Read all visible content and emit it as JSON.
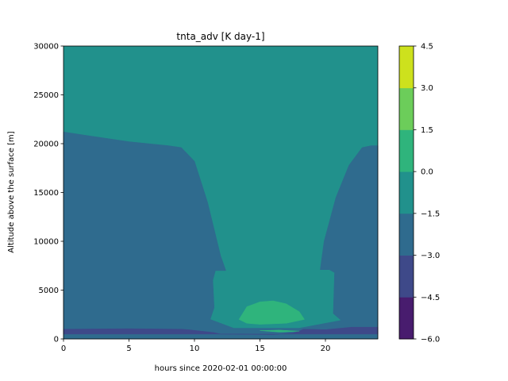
{
  "chart_data": {
    "type": "contourf",
    "title": "tnta_adv [K day-1]",
    "xlabel": "hours since 2020-02-01 00:00:00",
    "ylabel": "Altitude above the surface [m]",
    "xlim": [
      0,
      24
    ],
    "ylim": [
      0,
      30000
    ],
    "x_ticks": [
      0,
      5,
      10,
      15,
      20
    ],
    "x_tick_labels": [
      "0",
      "5",
      "10",
      "15",
      "20"
    ],
    "y_ticks": [
      0,
      5000,
      10000,
      15000,
      20000,
      25000,
      30000
    ],
    "y_tick_labels": [
      "0",
      "5000",
      "10000",
      "15000",
      "20000",
      "25000",
      "30000"
    ],
    "colorbar": {
      "levels": [
        -6.0,
        -4.5,
        -3.0,
        -1.5,
        0.0,
        1.5,
        3.0,
        4.5
      ],
      "tick_labels": [
        "−6.0",
        "−4.5",
        "−3.0",
        "−1.5",
        "0.0",
        "1.5",
        "3.0",
        "4.5"
      ],
      "colors": [
        "#481c6e",
        "#3e4989",
        "#2f6b8e",
        "#21918c",
        "#2fb47c",
        "#6ccd5a",
        "#cde11d"
      ]
    },
    "regions": [
      {
        "band": "-3.0 to -1.5",
        "outline": [
          [
            0,
            21200
          ],
          [
            2,
            20800
          ],
          [
            5,
            20200
          ],
          [
            8,
            19800
          ],
          [
            9,
            19600
          ],
          [
            10,
            18200
          ],
          [
            11,
            14000
          ],
          [
            12,
            8500
          ],
          [
            12.4,
            7000
          ],
          [
            11.6,
            7000
          ],
          [
            11.4,
            6000
          ],
          [
            11.5,
            3200
          ],
          [
            11.2,
            2000
          ],
          [
            13,
            1100
          ],
          [
            18,
            1100
          ],
          [
            21.2,
            1900
          ],
          [
            20.6,
            2600
          ],
          [
            20.7,
            6800
          ],
          [
            20.3,
            7100
          ],
          [
            19.6,
            7100
          ],
          [
            19.9,
            10000
          ],
          [
            20.8,
            14500
          ],
          [
            21.8,
            17800
          ],
          [
            22.8,
            19600
          ],
          [
            23.5,
            19800
          ],
          [
            24,
            19800
          ],
          [
            24,
            0
          ],
          [
            0,
            0
          ]
        ]
      },
      {
        "band": "-4.5 to -3.0",
        "outline": [
          [
            0,
            1000
          ],
          [
            5,
            1050
          ],
          [
            9,
            1000
          ],
          [
            9.5,
            950
          ],
          [
            11.5,
            650
          ],
          [
            12,
            500
          ],
          [
            16,
            450
          ],
          [
            17.5,
            600
          ],
          [
            18,
            800
          ],
          [
            18.3,
            1000
          ],
          [
            20,
            950
          ],
          [
            22,
            1200
          ],
          [
            24,
            1200
          ],
          [
            24,
            500
          ],
          [
            0,
            500
          ]
        ]
      },
      {
        "band": "1.5 to 0.0",
        "outline": [
          [
            13.4,
            2000
          ],
          [
            14,
            3300
          ],
          [
            15,
            3800
          ],
          [
            16,
            3900
          ],
          [
            17,
            3600
          ],
          [
            18,
            2800
          ],
          [
            18.4,
            2000
          ],
          [
            17,
            1600
          ],
          [
            15,
            1500
          ],
          [
            14,
            1600
          ]
        ]
      },
      {
        "band": "1.5 to 0.0",
        "outline": [
          [
            15,
            850
          ],
          [
            16.5,
            900
          ],
          [
            18,
            800
          ],
          [
            16.5,
            700
          ]
        ]
      }
    ]
  }
}
